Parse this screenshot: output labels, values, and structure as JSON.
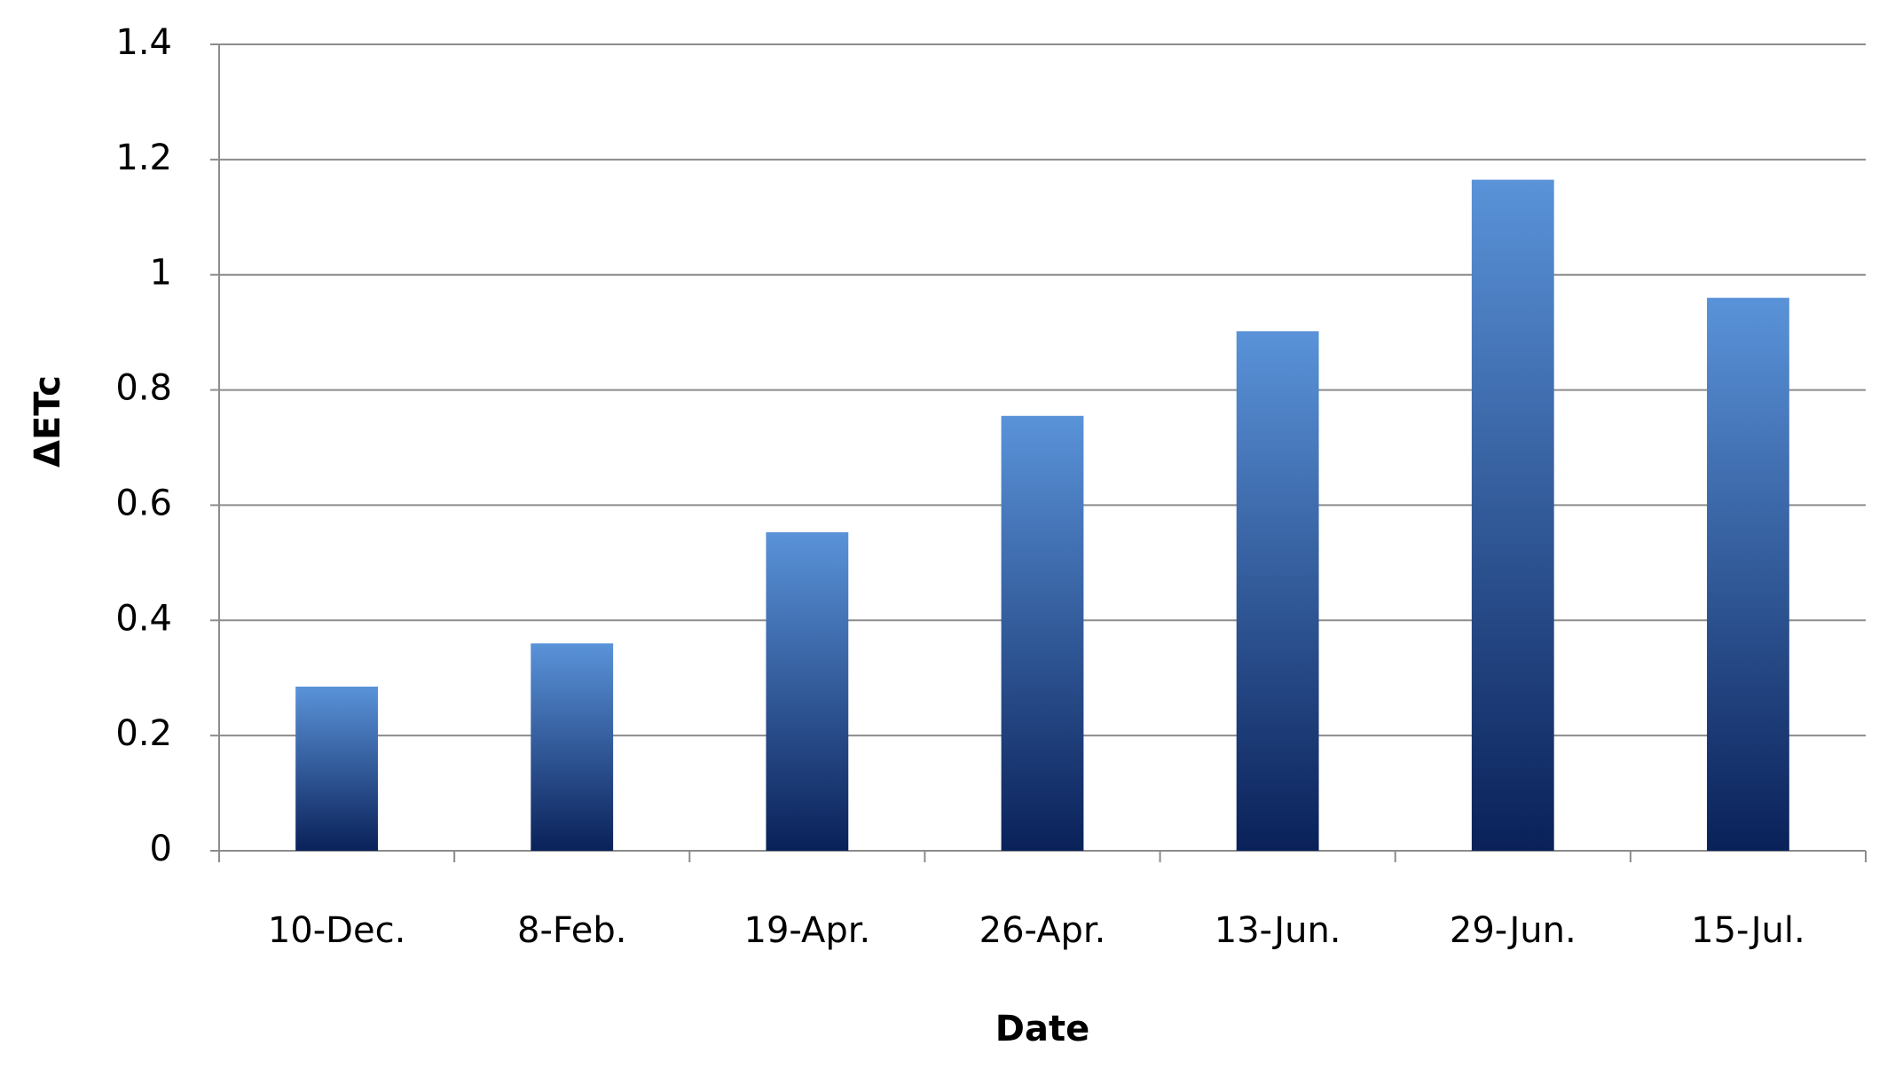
{
  "chart_data": {
    "type": "bar",
    "x_label": "Date",
    "y_label": "ΔETc",
    "categories": [
      "10-Dec.",
      "8-Feb.",
      "19-Apr.",
      "26-Apr.",
      "13-Jun.",
      "29-Jun.",
      "15-Jul."
    ],
    "values": [
      0.285,
      0.36,
      0.553,
      0.755,
      0.902,
      1.165,
      0.96
    ],
    "color": [
      "#5a93d9",
      "#0a2159"
    ],
    "ylim": [
      0,
      1.4
    ],
    "yticks": [
      0,
      0.2,
      0.4,
      0.6,
      0.8,
      1,
      1.2,
      1.4
    ],
    "grid": true
  }
}
